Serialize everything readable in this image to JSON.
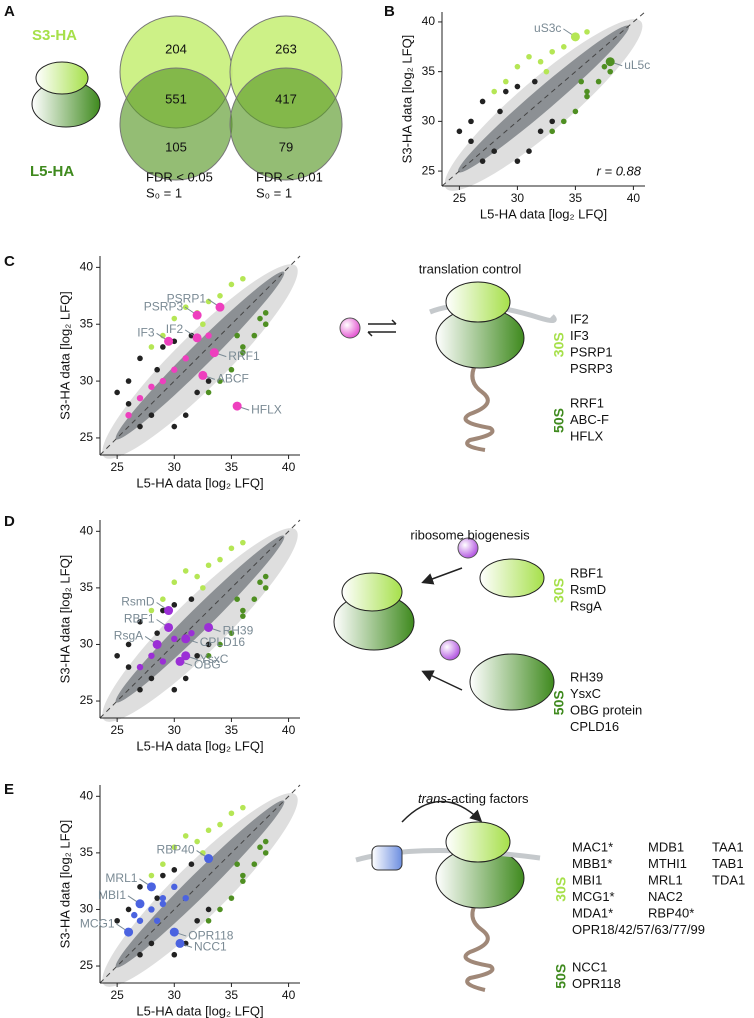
{
  "panel_a": {
    "letter": "A",
    "s3": "S3-HA",
    "l5": "L5-HA",
    "venns": [
      {
        "s3_only": 204,
        "both": 551,
        "l5_only": 105,
        "fdr": "FDR < 0.05",
        "s0": "S₀ = 1"
      },
      {
        "s3_only": 263,
        "both": 417,
        "l5_only": 79,
        "fdr": "FDR < 0.01",
        "s0": "S₀ = 1"
      }
    ]
  },
  "axes": {
    "x_label": "L5-HA data [log₂ LFQ]",
    "y_label": "S3-HA data [log₂ LFQ]",
    "xlim": [
      23.5,
      41
    ],
    "ylim": [
      23.5,
      41
    ],
    "xticks": [
      25,
      30,
      35,
      40
    ],
    "yticks": [
      25,
      30,
      35,
      40
    ]
  },
  "background": [
    {
      "color": "#222222",
      "x": [
        26,
        27,
        28,
        30,
        31,
        25,
        29,
        32,
        27,
        33,
        26,
        30,
        28.5,
        31.5
      ],
      "y": [
        30,
        32,
        27,
        26,
        27,
        29,
        33,
        29,
        26,
        30,
        28,
        33.5,
        31,
        34
      ]
    },
    {
      "color": "#b5e655",
      "x": [
        29,
        30,
        31,
        32,
        33,
        34,
        35,
        36,
        28,
        32.5
      ],
      "y": [
        34,
        35.5,
        36.5,
        36,
        37,
        37.5,
        38.5,
        39,
        33,
        35
      ]
    },
    {
      "color": "#4f8f22",
      "x": [
        34,
        35,
        36,
        37,
        37.5,
        38,
        36,
        33,
        35.5,
        38
      ],
      "y": [
        30,
        31,
        33,
        34,
        35.5,
        36,
        32.5,
        29,
        34,
        35
      ]
    }
  ],
  "scatters": [
    {
      "letter": "B",
      "annotation": "r = 0.88",
      "labeled": [
        {
          "name": "uS3c",
          "x": 35,
          "y": 38.5,
          "color": "#b5e655"
        },
        {
          "name": "uL5c",
          "x": 38,
          "y": 36,
          "color": "#4f8f22"
        }
      ]
    },
    {
      "letter": "C",
      "highlight": {
        "color": "#ee3fbe",
        "x": [
          26,
          27,
          29,
          30,
          31,
          33,
          28
        ],
        "y": [
          27,
          28.5,
          30,
          31,
          32,
          34,
          29.5
        ]
      },
      "labeled": [
        {
          "name": "PSRP1",
          "x": 34,
          "y": 36.5,
          "color": "#ee3fbe"
        },
        {
          "name": "PSRP3",
          "x": 32,
          "y": 35.8,
          "color": "#ee3fbe"
        },
        {
          "name": "IF3",
          "x": 29.5,
          "y": 33.5,
          "color": "#ee3fbe"
        },
        {
          "name": "IF2",
          "x": 32,
          "y": 33.8,
          "color": "#ee3fbe"
        },
        {
          "name": "RRF1",
          "x": 33.5,
          "y": 32.5,
          "color": "#ee3fbe"
        },
        {
          "name": "ABCF",
          "x": 32.5,
          "y": 30.5,
          "color": "#ee3fbe"
        },
        {
          "name": "HFLX",
          "x": 35.5,
          "y": 27.8,
          "color": "#ee3fbe"
        }
      ]
    },
    {
      "letter": "D",
      "highlight": {
        "color": "#9b2fd6",
        "x": [
          27,
          28,
          30,
          31.5,
          29
        ],
        "y": [
          28,
          29,
          30.5,
          31,
          28.5
        ]
      },
      "labeled": [
        {
          "name": "RsmD",
          "x": 29.5,
          "y": 33,
          "color": "#9b2fd6"
        },
        {
          "name": "RBF1",
          "x": 29.5,
          "y": 31.5,
          "color": "#9b2fd6"
        },
        {
          "name": "RsgA",
          "x": 28.5,
          "y": 30,
          "color": "#9b2fd6"
        },
        {
          "name": "RH39",
          "x": 33,
          "y": 31.5,
          "color": "#9b2fd6"
        },
        {
          "name": "CPLD16",
          "x": 31,
          "y": 30.5,
          "color": "#9b2fd6"
        },
        {
          "name": "YsxC",
          "x": 31,
          "y": 29,
          "color": "#9b2fd6"
        },
        {
          "name": "OBG",
          "x": 30.5,
          "y": 28.5,
          "color": "#9b2fd6"
        }
      ]
    },
    {
      "letter": "E",
      "highlight": {
        "color": "#4b63e0",
        "x": [
          27,
          28,
          29,
          30,
          26.5,
          28.5,
          31,
          29
        ],
        "y": [
          29,
          30,
          31,
          32,
          29.5,
          29,
          31,
          30.5
        ]
      },
      "labeled": [
        {
          "name": "RBP40",
          "x": 33,
          "y": 34.5,
          "color": "#4b63e0"
        },
        {
          "name": "MRL1",
          "x": 28,
          "y": 32,
          "color": "#4b63e0"
        },
        {
          "name": "MBI1",
          "x": 27,
          "y": 30.5,
          "color": "#4b63e0"
        },
        {
          "name": "MCG1",
          "x": 26,
          "y": 28,
          "color": "#4b63e0"
        },
        {
          "name": "OPR118",
          "x": 30,
          "y": 28,
          "color": "#4b63e0"
        },
        {
          "name": "NCC1",
          "x": 30.5,
          "y": 27,
          "color": "#4b63e0"
        }
      ]
    }
  ],
  "schematics": [
    {
      "title": "translation control",
      "s30_tag": "30S",
      "s50_tag": "50S",
      "s30": [
        "IF2",
        "IF3",
        "PSRP1",
        "PSRP3"
      ],
      "s50": [
        "RRF1",
        "ABC-F",
        "HFLX"
      ]
    },
    {
      "title": "ribosome biogenesis",
      "s30_tag": "30S",
      "s50_tag": "50S",
      "s30": [
        "RBF1",
        "RsmD",
        "RsgA"
      ],
      "s50": [
        "RH39",
        "YsxC",
        "OBG protein",
        "CPLD16"
      ]
    },
    {
      "title_italic": "trans",
      "title": "-acting factors",
      "s30_tag": "30S",
      "s50_tag": "50S",
      "s30_columns": [
        [
          "MAC1*",
          "MBB1*",
          "MBI1",
          "MCG1*",
          "MDA1*"
        ],
        [
          "MDB1",
          "MTHI1",
          "MRL1",
          "NAC2",
          "RBP40*"
        ],
        [
          "TAA1",
          "TAB1",
          "TDA1"
        ]
      ],
      "s30_extra": "OPR18/42/57/63/77/99",
      "s50": [
        "NCC1",
        "OPR118"
      ]
    }
  ]
}
